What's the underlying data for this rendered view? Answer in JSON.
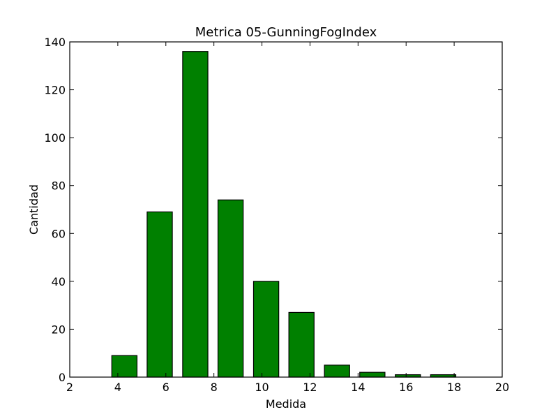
{
  "chart_data": {
    "type": "bar",
    "title": "Metrica 05-GunningFogIndex",
    "xlabel": "Medida",
    "ylabel": "Cantidad",
    "xlim": [
      2,
      20
    ],
    "ylim": [
      0,
      140
    ],
    "xticks": [
      2,
      4,
      6,
      8,
      10,
      12,
      14,
      16,
      18,
      20
    ],
    "yticks": [
      0,
      20,
      40,
      60,
      80,
      100,
      120,
      140
    ],
    "bar_color": "#008000",
    "bars": [
      {
        "x0": 3.75,
        "x1": 4.8,
        "value": 9
      },
      {
        "x0": 5.22,
        "x1": 6.27,
        "value": 69
      },
      {
        "x0": 6.7,
        "x1": 7.75,
        "value": 136
      },
      {
        "x0": 8.17,
        "x1": 9.22,
        "value": 74
      },
      {
        "x0": 9.65,
        "x1": 10.7,
        "value": 40
      },
      {
        "x0": 11.12,
        "x1": 12.17,
        "value": 27
      },
      {
        "x0": 12.6,
        "x1": 13.65,
        "value": 5
      },
      {
        "x0": 14.07,
        "x1": 15.12,
        "value": 2
      },
      {
        "x0": 15.55,
        "x1": 16.6,
        "value": 1
      },
      {
        "x0": 17.02,
        "x1": 18.07,
        "value": 1
      }
    ],
    "grid": false,
    "legend": "none"
  }
}
